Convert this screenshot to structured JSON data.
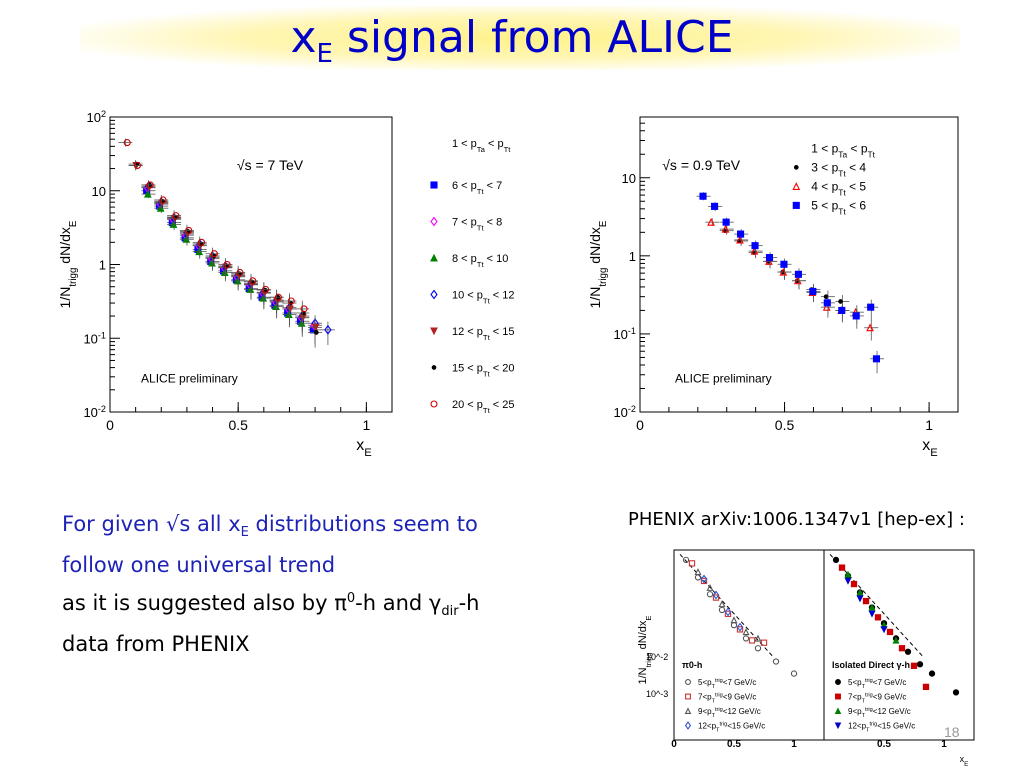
{
  "slide": {
    "title_main": "x",
    "title_sub": "E",
    "title_rest": " signal from ALICE",
    "page_number": "18"
  },
  "text": {
    "line1_a": "For given √s all x",
    "line1_sub": "E",
    "line1_b": " distributions seem to",
    "line2": "follow one universal trend",
    "line3_a": "as it is suggested also by ",
    "line3_pi": "π",
    "line3_sup": "0",
    "line3_b": "-h and ",
    "line3_gamma": "γ",
    "line3_sub": "dir",
    "line3_c": "-h",
    "line4": " data from PHENIX",
    "phenix_caption": "PHENIX arXiv:1006.1347v1 [hep-ex] :"
  },
  "colors": {
    "title": "#0000c8",
    "body_blue": "#1c23b5"
  },
  "chart_data": [
    {
      "type": "scatter",
      "annotation": "√s = 7 TeV",
      "watermark": "ALICE preliminary",
      "xlabel": "x_E",
      "ylabel": "1/N_trigg dN/dx_E",
      "xlim": [
        0,
        1.1
      ],
      "ylim": [
        0.01,
        100
      ],
      "yscale": "log",
      "xticks": [
        "0",
        "0.5",
        "1"
      ],
      "yticks": [
        "10^2",
        "10",
        "1",
        "10^-1",
        "10^-2"
      ],
      "legend_header": "1 < p_Ta < p_Tt",
      "legend_position": "right",
      "series": [
        {
          "name": "6 < p_Tt < 7",
          "marker": "square-filled",
          "color": "#0000ff",
          "x": [
            0.15,
            0.2,
            0.25,
            0.3,
            0.35,
            0.4,
            0.45,
            0.5,
            0.55,
            0.6,
            0.65,
            0.7,
            0.75,
            0.8
          ],
          "y": [
            10,
            6.2,
            3.7,
            2.3,
            1.6,
            1.1,
            0.82,
            0.62,
            0.47,
            0.36,
            0.28,
            0.22,
            0.17,
            0.13
          ]
        },
        {
          "name": "7 < p_Tt < 8",
          "marker": "diamond-open",
          "color": "#ff00ff",
          "x": [
            0.15,
            0.2,
            0.25,
            0.3,
            0.35,
            0.4,
            0.45,
            0.5,
            0.55,
            0.6,
            0.65,
            0.7,
            0.75,
            0.8
          ],
          "y": [
            11,
            6.6,
            4.1,
            2.5,
            1.8,
            1.2,
            0.9,
            0.68,
            0.53,
            0.41,
            0.31,
            0.25,
            0.19,
            0.15
          ]
        },
        {
          "name": "8 < p_Tt < 10",
          "marker": "triangle-filled",
          "color": "#008000",
          "x": [
            0.15,
            0.2,
            0.25,
            0.3,
            0.35,
            0.4,
            0.45,
            0.5,
            0.55,
            0.6,
            0.65,
            0.7,
            0.75
          ],
          "y": [
            9,
            5.8,
            3.5,
            2.2,
            1.5,
            1.05,
            0.78,
            0.6,
            0.46,
            0.35,
            0.27,
            0.21,
            0.16
          ]
        },
        {
          "name": "10 < p_Tt < 12",
          "marker": "diamond-open",
          "color": "#0000ff",
          "x": [
            0.15,
            0.2,
            0.25,
            0.3,
            0.35,
            0.4,
            0.45,
            0.5,
            0.55,
            0.6,
            0.65,
            0.7,
            0.75,
            0.8,
            0.85
          ],
          "y": [
            11.5,
            7,
            4.3,
            2.7,
            1.9,
            1.3,
            0.95,
            0.72,
            0.55,
            0.42,
            0.33,
            0.26,
            0.2,
            0.16,
            0.13
          ]
        },
        {
          "name": "12 < p_Tt < 15",
          "marker": "triangle-down-filled",
          "color": "#b22222",
          "x": [
            0.1,
            0.15,
            0.2,
            0.25,
            0.3,
            0.35,
            0.4,
            0.45,
            0.5,
            0.55,
            0.6,
            0.65,
            0.7,
            0.75,
            0.8
          ],
          "y": [
            22,
            11,
            6.8,
            4.2,
            2.6,
            1.8,
            1.25,
            0.92,
            0.7,
            0.54,
            0.41,
            0.32,
            0.25,
            0.19,
            0.14
          ]
        },
        {
          "name": "15 < p_Tt < 20",
          "marker": "dot-filled",
          "color": "#000000",
          "x": [
            0.1,
            0.15,
            0.2,
            0.25,
            0.3,
            0.35,
            0.4,
            0.45,
            0.5,
            0.55,
            0.6,
            0.65,
            0.7,
            0.75,
            0.8
          ],
          "y": [
            23,
            12,
            7.2,
            4.4,
            2.8,
            1.9,
            1.3,
            0.95,
            0.75,
            0.58,
            0.45,
            0.36,
            0.3,
            0.22,
            0.12
          ]
        },
        {
          "name": "20 < p_Tt < 25",
          "marker": "circle-open",
          "color": "#cc0000",
          "x": [
            0.06,
            0.1,
            0.15,
            0.2,
            0.25,
            0.3,
            0.35,
            0.4,
            0.45,
            0.5,
            0.55,
            0.6,
            0.65,
            0.7,
            0.75
          ],
          "y": [
            45,
            22,
            12,
            7.5,
            4.6,
            2.9,
            2,
            1.4,
            1,
            0.78,
            0.6,
            0.46,
            0.36,
            0.32,
            0.25
          ]
        }
      ]
    },
    {
      "type": "scatter",
      "annotation": "√s = 0.9 TeV",
      "watermark": "ALICE preliminary",
      "xlabel": "x_E",
      "ylabel": "1/N_trigg dN/dx_E",
      "xlim": [
        0,
        1.1
      ],
      "ylim": [
        0.01,
        60
      ],
      "yscale": "log",
      "xticks": [
        "0",
        "0.5",
        "1"
      ],
      "yticks": [
        "10",
        "1",
        "10^-1",
        "10^-2"
      ],
      "legend_header": "1 < p_Ta < p_Tt",
      "legend_position": "top-right",
      "series": [
        {
          "name": "3 < p_Tt < 4",
          "marker": "dot-filled",
          "color": "#000000",
          "x": [
            0.3,
            0.35,
            0.4,
            0.45,
            0.5,
            0.55,
            0.6,
            0.65,
            0.7
          ],
          "y": [
            2.1,
            1.55,
            1.1,
            0.85,
            0.62,
            0.48,
            0.37,
            0.3,
            0.26
          ]
        },
        {
          "name": "4 < p_Tt < 5",
          "marker": "triangle-open",
          "color": "#ff0000",
          "x": [
            0.25,
            0.3,
            0.35,
            0.4,
            0.45,
            0.5,
            0.55,
            0.6,
            0.65,
            0.7,
            0.75,
            0.8
          ],
          "y": [
            2.7,
            2.2,
            1.6,
            1.15,
            0.85,
            0.62,
            0.48,
            0.34,
            0.22,
            0.2,
            0.19,
            0.12
          ]
        },
        {
          "name": "5 < p_Tt < 6",
          "marker": "square-filled",
          "color": "#0000ff",
          "x": [
            0.22,
            0.26,
            0.3,
            0.35,
            0.4,
            0.45,
            0.5,
            0.55,
            0.6,
            0.65,
            0.7,
            0.75,
            0.8,
            0.82
          ],
          "y": [
            5.8,
            4.3,
            2.7,
            1.9,
            1.35,
            0.95,
            0.78,
            0.58,
            0.35,
            0.25,
            0.2,
            0.17,
            0.22,
            0.048
          ]
        }
      ]
    },
    {
      "type": "scatter",
      "xlabel": "x_E",
      "ylabel": "1/N_trigg dN/dx_E",
      "yscale": "log",
      "xticks": [
        "0",
        "0.5",
        "1",
        "0.5",
        "1"
      ],
      "yticks": [
        "10^-2",
        "10^-3"
      ],
      "panels": [
        {
          "label": "π0-h",
          "series": [
            {
              "name": "5<p_T^trig<7 GeV/c",
              "marker": "circle-open",
              "color": "#555555",
              "x": [
                0.1,
                0.2,
                0.3,
                0.4,
                0.5,
                0.6,
                0.7,
                0.85,
                1.0
              ],
              "y": [
                3,
                1.2,
                0.5,
                0.22,
                0.1,
                0.05,
                0.03,
                0.015,
                0.008
              ]
            },
            {
              "name": "7<p_T^trig<9 GeV/c",
              "marker": "square-open",
              "color": "#cc3333",
              "x": [
                0.15,
                0.25,
                0.35,
                0.45,
                0.55,
                0.65,
                0.75
              ],
              "y": [
                2.5,
                1,
                0.42,
                0.18,
                0.08,
                0.045,
                0.04
              ]
            },
            {
              "name": "9<p_T^trig<12 GeV/c",
              "marker": "triangle-open",
              "color": "#555555",
              "x": [
                0.2,
                0.3,
                0.4,
                0.5,
                0.6,
                0.7
              ],
              "y": [
                1.6,
                0.7,
                0.3,
                0.13,
                0.07,
                0.05
              ]
            },
            {
              "name": "12<p_T^trig<15 GeV/c",
              "marker": "diamond-open",
              "color": "#3355cc",
              "x": [
                0.25,
                0.35,
                0.45,
                0.55
              ],
              "y": [
                1.1,
                0.48,
                0.2,
                0.09
              ]
            }
          ]
        },
        {
          "label": "Isolated Direct γ-h",
          "series": [
            {
              "name": "5<p_T^trig<7 GeV/c",
              "marker": "circle-filled",
              "color": "#000000",
              "x": [
                0.1,
                0.2,
                0.3,
                0.4,
                0.5,
                0.6,
                0.7,
                0.8,
                0.9,
                1.1
              ],
              "y": [
                3,
                1.3,
                0.55,
                0.25,
                0.11,
                0.05,
                0.025,
                0.013,
                0.008,
                0.003
              ]
            },
            {
              "name": "7<p_T^trig<9 GeV/c",
              "marker": "square-filled",
              "color": "#cc0000",
              "x": [
                0.15,
                0.25,
                0.35,
                0.45,
                0.55,
                0.65,
                0.75,
                0.85
              ],
              "y": [
                2,
                0.85,
                0.35,
                0.15,
                0.07,
                0.03,
                0.012,
                0.004
              ]
            },
            {
              "name": "9<p_T^trig<12 GeV/c",
              "marker": "triangle-filled",
              "color": "#008000",
              "x": [
                0.2,
                0.3,
                0.4,
                0.5,
                0.6
              ],
              "y": [
                1.4,
                0.55,
                0.25,
                0.1,
                0.045
              ]
            },
            {
              "name": "12<p_T^trig<15 GeV/c",
              "marker": "triangle-down-filled",
              "color": "#0000cc",
              "x": [
                0.2,
                0.3,
                0.4,
                0.5
              ],
              "y": [
                1,
                0.4,
                0.18,
                0.08
              ]
            }
          ]
        }
      ]
    }
  ]
}
